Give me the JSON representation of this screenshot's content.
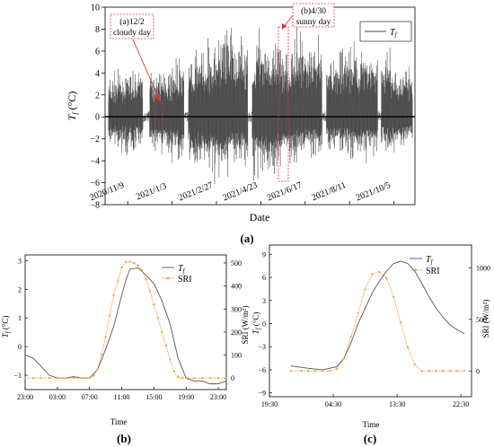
{
  "chart_data": [
    {
      "panel": "(a)",
      "type": "line",
      "xlabel": "Date",
      "ylabel_main": "T",
      "ylabel_sub": "f",
      "ylabel_unit": " (°C)",
      "ylim": [
        -8,
        10
      ],
      "yticks": [
        -8,
        -6,
        -4,
        -2,
        0,
        2,
        4,
        6,
        8,
        10
      ],
      "x_start": "2020-10-12",
      "x_end": "2021-10-31",
      "xtick_dates": [
        "2020-11-09",
        "2021-01-03",
        "2021-02-27",
        "2021-04-23",
        "2021-06-17",
        "2021-08-11",
        "2021-10-05"
      ],
      "xtick_labels": [
        "2020/11/9",
        "2021/1/3",
        "2021/2/27",
        "2021/4/23",
        "2021/6/17",
        "2021/8/11",
        "2021/10/5"
      ],
      "legend": {
        "main": "T",
        "sub": "f",
        "placement": "top-right"
      },
      "series": [
        {
          "x": [
            "2020-10-12",
            "2020-10-26",
            "2020-11-09",
            "2020-11-23",
            "2020-12-07",
            "2020-12-21",
            "2021-01-04",
            "2021-01-18",
            "2021-02-01",
            "2021-02-15",
            "2021-03-01",
            "2021-03-15",
            "2021-03-29",
            "2021-04-12",
            "2021-04-26",
            "2021-05-10",
            "2021-05-24",
            "2021-06-07",
            "2021-06-21",
            "2021-07-05",
            "2021-07-19",
            "2021-08-02",
            "2021-08-16",
            "2021-08-30",
            "2021-09-13",
            "2021-09-27",
            "2021-10-11",
            "2021-10-25"
          ],
          "max": [
            3.5,
            4.0,
            4.5,
            4.2,
            4.0,
            4.5,
            4.8,
            5.5,
            6.0,
            6.5,
            7.5,
            8.0,
            7.0,
            6.5,
            8.5,
            7.0,
            7.0,
            7.5,
            7.5,
            8.0,
            6.0,
            6.5,
            6.0,
            6.5,
            6.5,
            6.0,
            4.5,
            4.5
          ],
          "min": [
            -2.5,
            -3.0,
            -3.5,
            -3.0,
            -3.0,
            -3.5,
            -4.0,
            -4.5,
            -5.0,
            -5.0,
            -6.0,
            -5.0,
            -4.5,
            -5.5,
            -6.0,
            -5.0,
            -4.0,
            -4.5,
            -3.5,
            -4.0,
            -3.5,
            -3.5,
            -4.0,
            -4.0,
            -3.5,
            -3.5,
            -3.5,
            -2.0
          ]
        }
      ],
      "annotations": [
        {
          "line1": "(a)12/2",
          "line2": "cloudy day",
          "date": "2020-12-02"
        },
        {
          "line1": "(b)4/30",
          "line2": "sunny day",
          "date": "2021-04-30"
        }
      ]
    },
    {
      "panel": "(b)",
      "type": "line",
      "xlabel": "Time",
      "ylabel_left_main": "T",
      "ylabel_left_sub": "f",
      "ylabel_left_unit": " (°C)",
      "ylabel_right": "SRI (W/m²)",
      "xlim": [
        23,
        48
      ],
      "xticks": [
        23,
        27,
        31,
        35,
        39,
        43,
        47
      ],
      "xtick_labels": [
        "23:00",
        "03:00",
        "07:00",
        "11:00",
        "15:00",
        "19:00",
        "23:00"
      ],
      "ylim_left": [
        -1.5,
        3.2
      ],
      "yticks_left": [
        -1,
        0,
        1,
        2,
        3
      ],
      "ylim_right": [
        -50,
        535
      ],
      "yticks_right": [
        0,
        100,
        200,
        300,
        400,
        500
      ],
      "legend": {
        "placement": "top-right"
      },
      "series": [
        {
          "name_main": "T",
          "name_sub": "f",
          "axis": "left",
          "x": [
            23,
            24,
            25,
            26,
            27,
            28,
            29,
            30,
            31,
            32,
            33,
            34,
            35,
            35.5,
            36,
            37,
            38,
            39,
            40,
            41,
            42,
            43,
            44,
            45,
            46,
            47,
            48
          ],
          "y": [
            -0.3,
            -0.4,
            -0.7,
            -1.0,
            -1.1,
            -1.1,
            -1.05,
            -1.1,
            -1.1,
            -0.8,
            -0.1,
            0.7,
            1.8,
            2.3,
            2.7,
            2.75,
            2.5,
            2.2,
            1.6,
            0.8,
            -0.4,
            -1.1,
            -1.2,
            -1.2,
            -1.3,
            -1.3,
            -1.2
          ]
        },
        {
          "name": "SRI",
          "axis": "right",
          "x": [
            23,
            24,
            25,
            26,
            27,
            28,
            29,
            30,
            31,
            31.5,
            32,
            32.5,
            33,
            33.5,
            34,
            34.5,
            35,
            35.5,
            36,
            36.5,
            37,
            37.5,
            38,
            38.5,
            39,
            39.5,
            40,
            40.5,
            41,
            41.5,
            42,
            42.5,
            43,
            44,
            45,
            46,
            47,
            48
          ],
          "y": [
            0,
            0,
            0,
            0,
            0,
            0,
            0,
            0,
            0,
            10,
            40,
            100,
            180,
            270,
            360,
            420,
            480,
            505,
            505,
            500,
            490,
            470,
            430,
            380,
            320,
            260,
            200,
            140,
            80,
            30,
            5,
            0,
            0,
            0,
            0,
            0,
            0,
            0
          ]
        }
      ]
    },
    {
      "panel": "(c)",
      "type": "line",
      "xlabel": "Time",
      "ylabel_left_main": "T",
      "ylabel_left_sub": "f",
      "ylabel_left_unit": " (°C)",
      "ylabel_right": "SRI (W/m²)",
      "xlim": [
        19.5,
        48
      ],
      "xticks": [
        19.5,
        28.5,
        37.5,
        46.5
      ],
      "xtick_labels": [
        "19:30",
        "04:30",
        "13:30",
        "22:30"
      ],
      "ylim_left": [
        -9.5,
        10.2
      ],
      "yticks_left": [
        -9,
        -6,
        -3,
        0,
        3,
        6,
        9
      ],
      "ylim_right": [
        -250,
        1220
      ],
      "yticks_right": [
        0,
        500,
        1000
      ],
      "legend": {
        "placement": "top-right"
      },
      "series": [
        {
          "name_main": "T",
          "name_sub": "f",
          "axis": "left",
          "x": [
            22.5,
            25,
            27,
            29,
            30,
            31,
            32,
            33,
            34,
            35,
            36,
            37,
            38,
            39,
            40,
            41,
            42,
            43,
            44,
            45,
            46,
            47
          ],
          "y": [
            -5.5,
            -5.8,
            -6.0,
            -5.6,
            -4.5,
            -2.5,
            0,
            2,
            4,
            5.5,
            6.8,
            7.8,
            8.1,
            7.8,
            6.8,
            5.2,
            3.5,
            2,
            0.8,
            -0.2,
            -0.8,
            -1.3
          ]
        },
        {
          "name": "SRI",
          "axis": "right",
          "x": [
            22.5,
            24,
            25,
            26,
            27,
            28,
            29,
            30,
            31,
            32,
            33,
            34,
            35,
            36,
            37,
            38,
            39,
            40,
            41,
            42,
            43,
            44,
            45,
            46,
            47
          ],
          "y": [
            0,
            0,
            0,
            0,
            0,
            0,
            20,
            120,
            330,
            560,
            790,
            940,
            960,
            900,
            720,
            470,
            230,
            60,
            0,
            0,
            0,
            0,
            0,
            0,
            0
          ]
        }
      ]
    }
  ],
  "captions": {
    "a": "(a)",
    "b": "(b)",
    "c": "(c)"
  }
}
